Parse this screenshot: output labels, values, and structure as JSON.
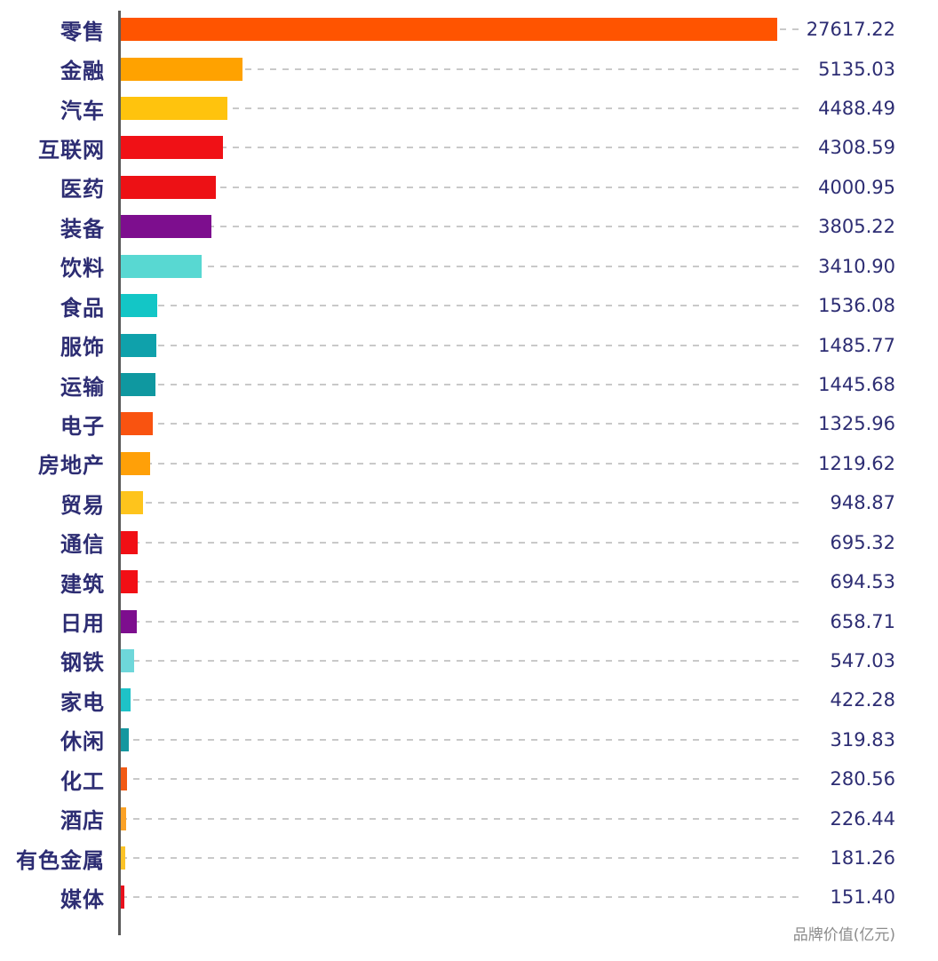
{
  "chart_data": {
    "type": "bar",
    "orientation": "horizontal",
    "title": "",
    "xlabel": "品牌价值(亿元)",
    "ylabel": "",
    "xlim": [
      0,
      28750
    ],
    "grid": "dashed-leader-lines",
    "legend": "none",
    "categories": [
      "零售",
      "金融",
      "汽车",
      "互联网",
      "医药",
      "装备",
      "饮料",
      "食品",
      "服饰",
      "运输",
      "电子",
      "房地产",
      "贸易",
      "通信",
      "建筑",
      "日用",
      "钢铁",
      "家电",
      "休闲",
      "化工",
      "酒店",
      "有色金属",
      "媒体"
    ],
    "values": [
      27617.22,
      5135.03,
      4488.49,
      4308.59,
      4000.95,
      3805.22,
      3410.9,
      1536.08,
      1485.77,
      1445.68,
      1325.96,
      1219.62,
      948.87,
      695.32,
      694.53,
      658.71,
      547.03,
      422.28,
      319.83,
      280.56,
      226.44,
      181.26,
      151.4
    ],
    "value_labels": [
      "27617.22",
      "5135.03",
      "4488.49",
      "4308.59",
      "4000.95",
      "3805.22",
      "3410.90",
      "1536.08",
      "1485.77",
      "1445.68",
      "1325.96",
      "1219.62",
      "948.87",
      "695.32",
      "694.53",
      "658.71",
      "547.03",
      "422.28",
      "319.83",
      "280.56",
      "226.44",
      "181.26",
      "151.40"
    ],
    "bar_colors": [
      "#FF5400",
      "#FFA200",
      "#FFC30D",
      "#F01116",
      "#ED1115",
      "#7D0E8E",
      "#58D8D2",
      "#13C6C6",
      "#0FA1AB",
      "#0F98A0",
      "#F95310",
      "#FFA008",
      "#FEC41C",
      "#F10F15",
      "#F20F15",
      "#7D0E8E",
      "#6ED7DA",
      "#1EC2C8",
      "#15979F",
      "#F25A14",
      "#FBA226",
      "#FCC327",
      "#E8101C"
    ]
  },
  "colors": {
    "background": "#FFFFFF",
    "category_text": "#2D2D73",
    "value_text": "#2D2D73",
    "axis_line": "#5A5A5A",
    "leader_line": "#C9C9C9",
    "axis_title_text": "#8C8C8C"
  }
}
